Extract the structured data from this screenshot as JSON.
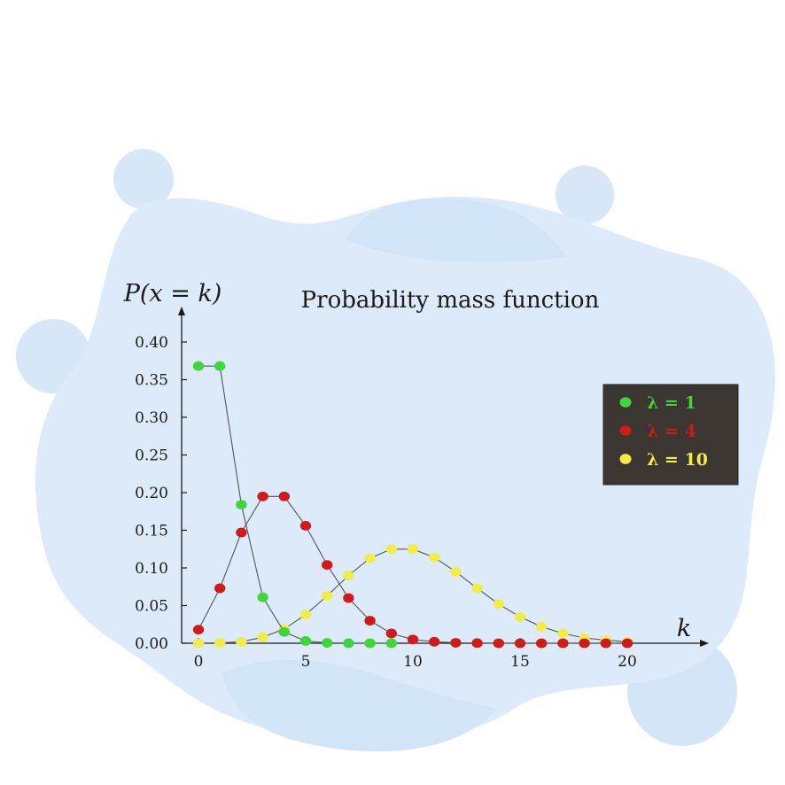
{
  "chart_data": {
    "type": "line",
    "title": "Probability mass function",
    "ylabel": "P(x = k)",
    "xlabel": "k",
    "xlim": [
      -1,
      23.5
    ],
    "ylim": [
      0,
      0.43
    ],
    "xticks": [
      "0",
      "5",
      "10",
      "15",
      "20"
    ],
    "xtick_values": [
      0,
      5,
      10,
      15,
      20
    ],
    "yticks": [
      "0.00",
      "0.05",
      "0.10",
      "0.15",
      "0.20",
      "0.25",
      "0.30",
      "0.35",
      "0.40"
    ],
    "ytick_values": [
      0,
      0.05,
      0.1,
      0.15,
      0.2,
      0.25,
      0.3,
      0.35,
      0.4
    ],
    "grid": false,
    "legend_position": "right",
    "series": [
      {
        "name": "λ = 1",
        "color": "#3fd63a",
        "x": [
          0,
          1,
          2,
          3,
          4,
          5,
          6,
          7,
          8,
          9
        ],
        "values": [
          0.368,
          0.368,
          0.184,
          0.061,
          0.015,
          0.003,
          0.0005,
          0.0001,
          0.0,
          0.0
        ]
      },
      {
        "name": "λ = 4",
        "color": "#d11a1a",
        "x": [
          0,
          1,
          2,
          3,
          4,
          5,
          6,
          7,
          8,
          9,
          10,
          11,
          12,
          13,
          14,
          15,
          16,
          17,
          18,
          19,
          20
        ],
        "values": [
          0.018,
          0.073,
          0.147,
          0.195,
          0.195,
          0.156,
          0.104,
          0.06,
          0.03,
          0.013,
          0.005,
          0.002,
          0.0006,
          0.0002,
          0.0,
          0.0,
          0.0,
          0.0,
          0.0,
          0.0,
          0.0
        ]
      },
      {
        "name": "λ = 10",
        "color": "#f2ec47",
        "x": [
          0,
          1,
          2,
          3,
          4,
          5,
          6,
          7,
          8,
          9,
          10,
          11,
          12,
          13,
          14,
          15,
          16,
          17,
          18,
          19,
          20
        ],
        "values": [
          0.0,
          0.0005,
          0.002,
          0.008,
          0.019,
          0.038,
          0.063,
          0.09,
          0.113,
          0.125,
          0.125,
          0.114,
          0.095,
          0.073,
          0.052,
          0.035,
          0.022,
          0.013,
          0.007,
          0.004,
          0.002
        ]
      }
    ]
  },
  "colors": {
    "blob": "#dbeaf9",
    "blob_dark": "#c9def5",
    "axis": "#1a1a1a",
    "legend_bg": "#3b3632"
  }
}
